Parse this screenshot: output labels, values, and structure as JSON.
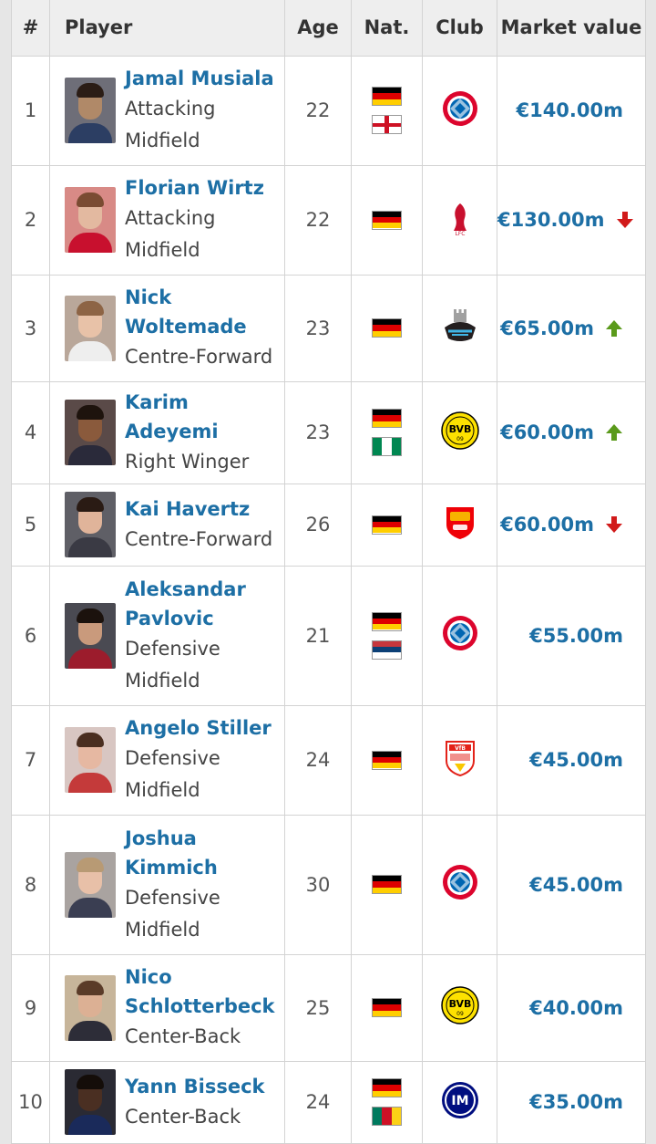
{
  "table": {
    "headers": {
      "rank": "#",
      "player": "Player",
      "age": "Age",
      "nat": "Nat.",
      "club": "Club",
      "value": "Market value"
    },
    "rows": [
      {
        "rank": "1",
        "name": "Jamal Musiala",
        "position": "Attacking Midfield",
        "age": "22",
        "nationalities": [
          "Germany",
          "England"
        ],
        "club": "Bayern Munich",
        "value": "€140.00m",
        "trend": "none",
        "photo": {
          "skin": "#b08968",
          "hair": "#2b1d16",
          "shirt": "#2c3e63",
          "bg": "#6e6e78"
        }
      },
      {
        "rank": "2",
        "name": "Florian Wirtz",
        "position": "Attacking Midfield",
        "age": "22",
        "nationalities": [
          "Germany"
        ],
        "club": "Liverpool",
        "value": "€130.00m",
        "trend": "down",
        "photo": {
          "skin": "#e3b9a0",
          "hair": "#7a4b32",
          "shirt": "#c8102e",
          "bg": "#d88a86"
        }
      },
      {
        "rank": "3",
        "name": "Nick Woltemade",
        "position": "Centre-Forward",
        "age": "23",
        "nationalities": [
          "Germany"
        ],
        "club": "Newcastle United",
        "value": "€65.00m",
        "trend": "up",
        "photo": {
          "skin": "#e8c2a8",
          "hair": "#8d6445",
          "shirt": "#eeeeee",
          "bg": "#b9a79a"
        }
      },
      {
        "rank": "4",
        "name": "Karim Adeyemi",
        "position": "Right Winger",
        "age": "23",
        "nationalities": [
          "Germany",
          "Nigeria"
        ],
        "club": "Borussia Dortmund",
        "value": "€60.00m",
        "trend": "up",
        "photo": {
          "skin": "#8a5a3c",
          "hair": "#1e130d",
          "shirt": "#2a2a3a",
          "bg": "#5a4a48"
        }
      },
      {
        "rank": "5",
        "name": "Kai Havertz",
        "position": "Centre-Forward",
        "age": "26",
        "nationalities": [
          "Germany"
        ],
        "club": "Arsenal",
        "value": "€60.00m",
        "trend": "down",
        "photo": {
          "skin": "#e0b49a",
          "hair": "#2a1b14",
          "shirt": "#3a3a44",
          "bg": "#5f5f66"
        }
      },
      {
        "rank": "6",
        "name": "Aleksandar Pavlovic",
        "position": "Defensive Midfield",
        "age": "21",
        "nationalities": [
          "Germany",
          "Serbia"
        ],
        "club": "Bayern Munich",
        "value": "€55.00m",
        "trend": "none",
        "photo": {
          "skin": "#c99a7c",
          "hair": "#1b120d",
          "shirt": "#9c1c2c",
          "bg": "#4a4a52"
        }
      },
      {
        "rank": "7",
        "name": "Angelo Stiller",
        "position": "Defensive Midfield",
        "age": "24",
        "nationalities": [
          "Germany"
        ],
        "club": "VfB Stuttgart",
        "value": "€45.00m",
        "trend": "none",
        "photo": {
          "skin": "#e6b8a2",
          "hair": "#4a2e20",
          "shirt": "#c43a3a",
          "bg": "#d8c6c2"
        }
      },
      {
        "rank": "8",
        "name": "Joshua Kimmich",
        "position": "Defensive Midfield",
        "age": "30",
        "nationalities": [
          "Germany"
        ],
        "club": "Bayern Munich",
        "value": "€45.00m",
        "trend": "none",
        "photo": {
          "skin": "#e8c0a8",
          "hair": "#b89a74",
          "shirt": "#3a3e52",
          "bg": "#a9a3a0"
        }
      },
      {
        "rank": "9",
        "name": "Nico Schlotterbeck",
        "position": "Center-Back",
        "age": "25",
        "nationalities": [
          "Germany"
        ],
        "club": "Borussia Dortmund",
        "value": "€40.00m",
        "trend": "none",
        "photo": {
          "skin": "#dcb094",
          "hair": "#5a3b28",
          "shirt": "#2d2d38",
          "bg": "#c7b59a"
        }
      },
      {
        "rank": "10",
        "name": "Yann Bisseck",
        "position": "Center-Back",
        "age": "24",
        "nationalities": [
          "Germany",
          "Cameroon"
        ],
        "club": "Inter Milan",
        "value": "€35.00m",
        "trend": "none",
        "photo": {
          "skin": "#4a2f22",
          "hair": "#140d09",
          "shirt": "#1a2a5a",
          "bg": "#2a2a33"
        }
      }
    ]
  },
  "colors": {
    "link": "#1d6fa5",
    "trend_up": "#5a9a1b",
    "trend_down": "#d11a1a"
  }
}
